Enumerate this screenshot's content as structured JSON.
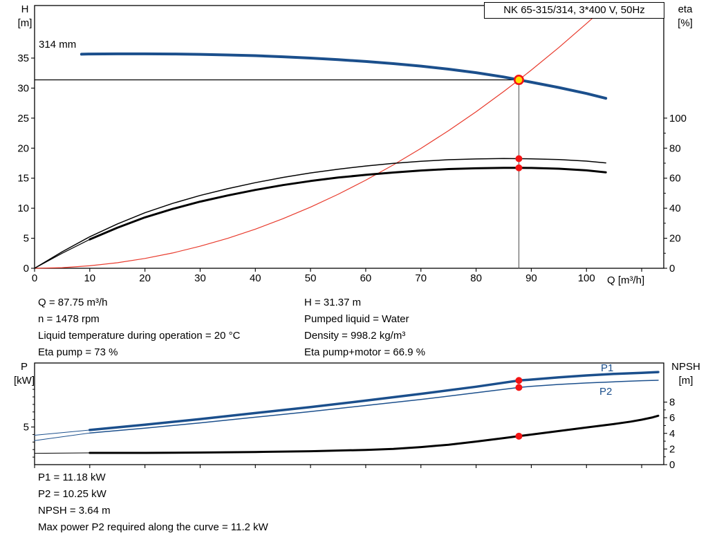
{
  "colors": {
    "blue": "#1B4F8C",
    "red": "#E8392B",
    "marker_red": "#F41414",
    "yellow": "#FFE000",
    "black": "#000000",
    "gray": "#4D4D4D"
  },
  "info": {
    "left": [
      "Q = 87.75 m³/h",
      "n = 1478 rpm",
      "Liquid temperature during operation = 20 °C",
      "Eta pump = 73 %"
    ],
    "right": [
      "H = 31.37 m",
      "Pumped liquid = Water",
      "Density = 998.2 kg/m³",
      "Eta pump+motor = 66.9 %"
    ],
    "bottom": [
      "P1 = 11.18 kW",
      "P2 = 10.25 kW",
      "NPSH = 3.64 m",
      "Max power P2 required along the curve = 11.2 kW"
    ]
  },
  "chart_data": [
    {
      "type": "line",
      "name": "hq-eta-chart",
      "title": "NK 65-315/314, 3*400 V, 50Hz",
      "xlabel": "Q [m³/h]",
      "ylabel_left": [
        "H",
        "[m]"
      ],
      "ylabel_right": [
        "eta",
        "[%]"
      ],
      "annotations": [
        "314 mm"
      ],
      "xlim": [
        0,
        114
      ],
      "ylim_left": [
        0,
        43.75
      ],
      "ylim_right": [
        0,
        175
      ],
      "xticks": [
        0,
        10,
        20,
        30,
        40,
        50,
        60,
        70,
        80,
        90,
        100,
        110
      ],
      "xticklabels": [
        "0",
        "10",
        "20",
        "30",
        "40",
        "50",
        "60",
        "70",
        "80",
        "90",
        "100",
        ""
      ],
      "yticks_left": [
        0,
        5,
        10,
        15,
        20,
        25,
        30,
        35
      ],
      "ylabels_left": [
        "0",
        "5",
        "10",
        "15",
        "20",
        "25",
        "30",
        "35"
      ],
      "yticks_right": [
        0,
        20,
        40,
        60,
        80,
        100
      ],
      "ylabels_right": [
        "0",
        "20",
        "40",
        "60",
        "80",
        "100"
      ],
      "yminor_right": [
        10,
        30,
        50,
        70,
        90
      ],
      "duty_point": {
        "Q": 87.75,
        "H": 31.37,
        "eta_pump": 73,
        "eta_pump_motor": 66.9
      },
      "series": [
        {
          "name": "system-curve",
          "axis": "left",
          "color": "red",
          "width": 1.2,
          "points": [
            [
              0,
              0
            ],
            [
              5,
              0.1
            ],
            [
              10,
              0.41
            ],
            [
              15,
              0.92
            ],
            [
              20,
              1.63
            ],
            [
              25,
              2.55
            ],
            [
              30,
              3.67
            ],
            [
              35,
              4.99
            ],
            [
              40,
              6.52
            ],
            [
              45,
              8.25
            ],
            [
              50,
              10.18
            ],
            [
              55,
              12.32
            ],
            [
              60,
              14.67
            ],
            [
              65,
              17.21
            ],
            [
              70,
              19.96
            ],
            [
              75,
              22.91
            ],
            [
              80,
              26.07
            ],
            [
              85,
              29.43
            ],
            [
              87.75,
              31.37
            ],
            [
              90,
              33.0
            ],
            [
              95,
              36.76
            ],
            [
              100,
              40.74
            ],
            [
              102.5,
              42.8
            ]
          ]
        },
        {
          "name": "duty-head-line",
          "axis": "left",
          "color": "black",
          "width": 1.2,
          "points": [
            [
              0,
              31.37
            ],
            [
              87.75,
              31.37
            ]
          ]
        },
        {
          "name": "duty-flow-line",
          "axis": "left",
          "color": "gray",
          "width": 1,
          "points": [
            [
              87.75,
              31.37
            ],
            [
              87.75,
              0
            ]
          ]
        },
        {
          "name": "eta-pump-curve",
          "axis": "right",
          "color": "black",
          "width": 1.5,
          "points": [
            [
              0,
              0
            ],
            [
              5,
              11
            ],
            [
              10,
              21
            ],
            [
              15,
              29.5
            ],
            [
              20,
              37
            ],
            [
              25,
              43.2
            ],
            [
              30,
              48.5
            ],
            [
              35,
              53
            ],
            [
              40,
              57
            ],
            [
              45,
              60.5
            ],
            [
              50,
              63.5
            ],
            [
              55,
              66
            ],
            [
              60,
              68.1
            ],
            [
              65,
              69.9
            ],
            [
              70,
              71.3
            ],
            [
              75,
              72.3
            ],
            [
              80,
              72.8
            ],
            [
              85,
              73.1
            ],
            [
              87.75,
              73
            ],
            [
              90,
              72.9
            ],
            [
              95,
              72.4
            ],
            [
              100,
              71.4
            ],
            [
              103.5,
              70.2
            ]
          ]
        },
        {
          "name": "eta-pump-motor-lead",
          "axis": "right",
          "color": "black",
          "width": 1.2,
          "points": [
            [
              0,
              0
            ],
            [
              5,
              10
            ],
            [
              10,
              19.2
            ]
          ]
        },
        {
          "name": "eta-pump-motor-curve",
          "axis": "right",
          "color": "black",
          "width": 3,
          "points": [
            [
              10,
              19.2
            ],
            [
              15,
              27
            ],
            [
              20,
              33.9
            ],
            [
              25,
              39.5
            ],
            [
              30,
              44.4
            ],
            [
              35,
              48.5
            ],
            [
              40,
              52.2
            ],
            [
              45,
              55.4
            ],
            [
              50,
              58.1
            ],
            [
              55,
              60.4
            ],
            [
              60,
              62.2
            ],
            [
              65,
              63.8
            ],
            [
              70,
              65.1
            ],
            [
              75,
              66.1
            ],
            [
              80,
              66.6
            ],
            [
              85,
              66.9
            ],
            [
              87.75,
              66.9
            ],
            [
              90,
              66.8
            ],
            [
              95,
              66.3
            ],
            [
              100,
              65.2
            ],
            [
              103.5,
              63.9
            ]
          ]
        },
        {
          "name": "pump-curve-314mm",
          "axis": "left",
          "color": "blue",
          "width": 4,
          "points": [
            [
              8.5,
              35.65
            ],
            [
              10,
              35.68
            ],
            [
              15,
              35.7
            ],
            [
              20,
              35.7
            ],
            [
              25,
              35.68
            ],
            [
              30,
              35.62
            ],
            [
              35,
              35.52
            ],
            [
              40,
              35.4
            ],
            [
              45,
              35.22
            ],
            [
              50,
              35.0
            ],
            [
              55,
              34.74
            ],
            [
              60,
              34.44
            ],
            [
              65,
              34.08
            ],
            [
              70,
              33.66
            ],
            [
              75,
              33.16
            ],
            [
              80,
              32.57
            ],
            [
              85,
              31.86
            ],
            [
              87.75,
              31.37
            ],
            [
              90,
              30.98
            ],
            [
              95,
              30.1
            ],
            [
              100,
              29.1
            ],
            [
              103.5,
              28.3
            ]
          ]
        }
      ],
      "markers": [
        {
          "name": "duty-point-marker",
          "axis": "left",
          "x": 87.75,
          "y": 31.37,
          "style": "duty"
        },
        {
          "name": "eta-pump-duty-marker",
          "axis": "right",
          "x": 87.75,
          "y": 73,
          "style": "dot"
        },
        {
          "name": "eta-pump-motor-duty-marker",
          "axis": "right",
          "x": 87.75,
          "y": 66.9,
          "style": "dot"
        }
      ]
    },
    {
      "type": "line",
      "name": "power-npsh-chart",
      "xlabel": "",
      "ylabel_left": [
        "P",
        "[kW]"
      ],
      "ylabel_right": [
        "NPSH",
        "[m]"
      ],
      "xlim": [
        0,
        114
      ],
      "ylim_left": [
        0,
        13.5
      ],
      "ylim_right": [
        0,
        13
      ],
      "xticks": [
        0,
        10,
        20,
        30,
        40,
        50,
        60,
        70,
        80,
        90,
        100,
        110
      ],
      "xticklabels": [
        "",
        "",
        "",
        "",
        "",
        "",
        "",
        "",
        "",
        "",
        "",
        ""
      ],
      "yticks_left": [
        5
      ],
      "ylabels_left": [
        "5"
      ],
      "yminor_left": [
        1,
        2,
        3,
        4,
        6,
        7,
        8,
        9,
        10
      ],
      "yticks_right": [
        0,
        2,
        4,
        6,
        8
      ],
      "ylabels_right": [
        "0",
        "2",
        "4",
        "6",
        "8"
      ],
      "yminor_right": [
        1,
        3,
        5,
        7
      ],
      "duty_point": {
        "Q": 87.75,
        "P1": 11.18,
        "P2": 10.25,
        "NPSH": 3.64
      },
      "series": [
        {
          "name": "p1-lead",
          "axis": "left",
          "color": "blue",
          "width": 1,
          "points": [
            [
              0,
              3.9
            ],
            [
              10,
              4.6
            ]
          ]
        },
        {
          "name": "p1-curve",
          "axis": "left",
          "color": "blue",
          "width": 3.5,
          "label": "P1",
          "points": [
            [
              10,
              4.6
            ],
            [
              20,
              5.3
            ],
            [
              30,
              6.05
            ],
            [
              40,
              6.85
            ],
            [
              50,
              7.65
            ],
            [
              60,
              8.5
            ],
            [
              70,
              9.4
            ],
            [
              80,
              10.35
            ],
            [
              87.75,
              11.18
            ],
            [
              90,
              11.3
            ],
            [
              95,
              11.6
            ],
            [
              100,
              11.85
            ],
            [
              105,
              12.05
            ],
            [
              110,
              12.2
            ],
            [
              113,
              12.3
            ]
          ]
        },
        {
          "name": "p2-lead",
          "axis": "left",
          "color": "blue",
          "width": 1,
          "points": [
            [
              0,
              3.2
            ],
            [
              10,
              4.2
            ]
          ]
        },
        {
          "name": "p2-curve",
          "axis": "left",
          "color": "blue",
          "width": 1.5,
          "label": "P2",
          "points": [
            [
              10,
              4.2
            ],
            [
              20,
              4.85
            ],
            [
              30,
              5.55
            ],
            [
              40,
              6.3
            ],
            [
              50,
              7.05
            ],
            [
              60,
              7.85
            ],
            [
              70,
              8.65
            ],
            [
              80,
              9.55
            ],
            [
              87.75,
              10.25
            ],
            [
              90,
              10.4
            ],
            [
              95,
              10.65
            ],
            [
              100,
              10.85
            ],
            [
              105,
              11.0
            ],
            [
              110,
              11.15
            ],
            [
              113,
              11.2
            ]
          ]
        },
        {
          "name": "npsh-lead",
          "axis": "right",
          "color": "black",
          "width": 1,
          "points": [
            [
              0,
              1.45
            ],
            [
              10,
              1.5
            ]
          ]
        },
        {
          "name": "npsh-curve",
          "axis": "right",
          "color": "black",
          "width": 3,
          "points": [
            [
              10,
              1.5
            ],
            [
              20,
              1.5
            ],
            [
              30,
              1.55
            ],
            [
              40,
              1.62
            ],
            [
              50,
              1.72
            ],
            [
              60,
              1.88
            ],
            [
              65,
              2.02
            ],
            [
              70,
              2.25
            ],
            [
              75,
              2.55
            ],
            [
              80,
              2.95
            ],
            [
              85,
              3.4
            ],
            [
              87.75,
              3.64
            ],
            [
              90,
              3.85
            ],
            [
              95,
              4.3
            ],
            [
              100,
              4.75
            ],
            [
              105,
              5.2
            ],
            [
              108,
              5.5
            ],
            [
              110,
              5.75
            ],
            [
              112,
              6.05
            ],
            [
              113,
              6.25
            ]
          ]
        }
      ],
      "markers": [
        {
          "name": "p1-duty-marker",
          "axis": "left",
          "x": 87.75,
          "y": 11.18,
          "style": "dot"
        },
        {
          "name": "p2-duty-marker",
          "axis": "left",
          "x": 87.75,
          "y": 10.25,
          "style": "dot"
        },
        {
          "name": "npsh-duty-marker",
          "axis": "right",
          "x": 87.75,
          "y": 3.64,
          "style": "dot"
        }
      ]
    }
  ]
}
